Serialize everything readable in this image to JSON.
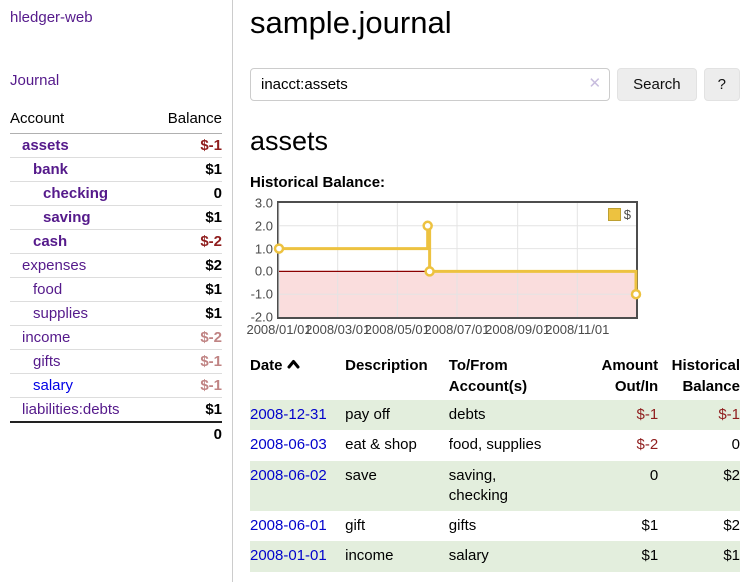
{
  "app": {
    "brand": "hledger-web",
    "nav_journal": "Journal"
  },
  "sidebar": {
    "header": {
      "account": "Account",
      "balance": "Balance"
    },
    "accounts": [
      {
        "name": "assets",
        "balance": "$-1"
      },
      {
        "name": "bank",
        "balance": "$1"
      },
      {
        "name": "checking",
        "balance": "0"
      },
      {
        "name": "saving",
        "balance": "$1"
      },
      {
        "name": "cash",
        "balance": "$-2"
      },
      {
        "name": "expenses",
        "balance": "$2"
      },
      {
        "name": "food",
        "balance": "$1"
      },
      {
        "name": "supplies",
        "balance": "$1"
      },
      {
        "name": "income",
        "balance": "$-2"
      },
      {
        "name": "gifts",
        "balance": "$-1"
      },
      {
        "name": "salary",
        "balance": "$-1"
      },
      {
        "name": "liabilities:debts",
        "balance": "$1"
      }
    ],
    "total": "0"
  },
  "header": {
    "title": "sample.journal"
  },
  "search": {
    "query": "inacct:assets",
    "clear_label": "✕",
    "button_label": "Search",
    "help_label": "?"
  },
  "account_page": {
    "heading": "assets",
    "chart_title": "Historical Balance:"
  },
  "chart_data": {
    "type": "line",
    "title": "Historical Balance:",
    "step": true,
    "series": [
      {
        "name": "$",
        "color": "#edc240",
        "points": [
          {
            "date": "2008-01-01",
            "day": 0,
            "y": 1
          },
          {
            "date": "2008-06-01",
            "day": 152,
            "y": 2
          },
          {
            "date": "2008-06-03",
            "day": 154,
            "y": 0
          },
          {
            "date": "2008-12-31",
            "day": 365,
            "y": -1
          }
        ]
      }
    ],
    "x_ticks": [
      {
        "label": "2008/01/01",
        "day": 0
      },
      {
        "label": "2008/03/01",
        "day": 60
      },
      {
        "label": "2008/05/01",
        "day": 121
      },
      {
        "label": "2008/07/01",
        "day": 182
      },
      {
        "label": "2008/09/01",
        "day": 244
      },
      {
        "label": "2008/11/01",
        "day": 305
      }
    ],
    "y_ticks": [
      {
        "label": "3.0",
        "v": 3
      },
      {
        "label": "2.0",
        "v": 2
      },
      {
        "label": "1.0",
        "v": 1
      },
      {
        "label": "0.0",
        "v": 0
      },
      {
        "label": "-1.0",
        "v": -1
      },
      {
        "label": "-2.0",
        "v": -2
      }
    ],
    "x_range_days": [
      0,
      365
    ],
    "ylim": [
      -2,
      3
    ],
    "grid_on": true,
    "legend_position": "top-right",
    "colors": {
      "negative_region": "#fadddd",
      "zero_line": "#8b0000",
      "grid": "#e4e4e4"
    }
  },
  "register": {
    "columns": [
      {
        "line1": "Date",
        "line2": ""
      },
      {
        "line1": "Description",
        "line2": ""
      },
      {
        "line1": "To/From",
        "line2": "Account(s)"
      },
      {
        "line1": "Amount",
        "line2": "Out/In"
      },
      {
        "line1": "Historical",
        "line2": "Balance"
      }
    ],
    "rows": [
      {
        "date": "2008-12-31",
        "description": "pay off",
        "accounts": "debts",
        "amount": "$-1",
        "balance": "$-1"
      },
      {
        "date": "2008-06-03",
        "description": "eat & shop",
        "accounts": "food, supplies",
        "amount": "$-2",
        "balance": "0"
      },
      {
        "date": "2008-06-02",
        "description": "save",
        "accounts": "saving, checking",
        "amount": "0",
        "balance": "$2"
      },
      {
        "date": "2008-06-01",
        "description": "gift",
        "accounts": "gifts",
        "amount": "$1",
        "balance": "$2"
      },
      {
        "date": "2008-01-01",
        "description": "income",
        "accounts": "salary",
        "amount": "$1",
        "balance": "$1"
      }
    ]
  }
}
